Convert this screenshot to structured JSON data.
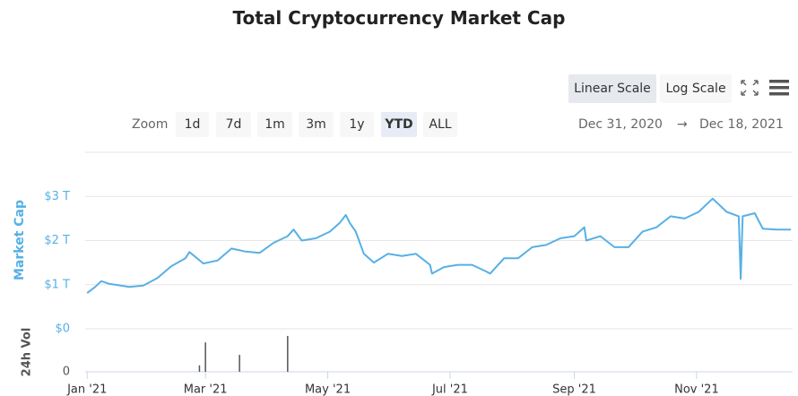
{
  "controls": {
    "scale_buttons": [
      "Linear Scale",
      "Log Scale"
    ],
    "zoom_label": "Zoom",
    "zoom_buttons": [
      "1d",
      "7d",
      "1m",
      "3m",
      "1y",
      "YTD",
      "ALL"
    ],
    "range_from": "Dec 31, 2020",
    "range_arrow": "→",
    "range_to": "Dec 18, 2021"
  },
  "chart_data": [
    {
      "type": "line",
      "title": "Total Cryptocurrency Market Cap",
      "ylabel": "Market Cap",
      "color": "#57b0e5",
      "x": [
        "2021-01-01",
        "2021-01-05",
        "2021-01-08",
        "2021-01-12",
        "2021-01-15",
        "2021-01-22",
        "2021-01-29",
        "2021-02-05",
        "2021-02-12",
        "2021-02-19",
        "2021-02-21",
        "2021-02-28",
        "2021-03-07",
        "2021-03-14",
        "2021-03-21",
        "2021-03-28",
        "2021-04-04",
        "2021-04-11",
        "2021-04-14",
        "2021-04-18",
        "2021-04-25",
        "2021-05-02",
        "2021-05-07",
        "2021-05-10",
        "2021-05-12",
        "2021-05-15",
        "2021-05-19",
        "2021-05-24",
        "2021-05-31",
        "2021-06-07",
        "2021-06-14",
        "2021-06-21",
        "2021-06-22",
        "2021-06-28",
        "2021-07-05",
        "2021-07-12",
        "2021-07-19",
        "2021-07-21",
        "2021-07-28",
        "2021-08-04",
        "2021-08-11",
        "2021-08-18",
        "2021-08-25",
        "2021-09-01",
        "2021-09-06",
        "2021-09-07",
        "2021-09-14",
        "2021-09-21",
        "2021-09-28",
        "2021-10-05",
        "2021-10-12",
        "2021-10-19",
        "2021-10-26",
        "2021-11-02",
        "2021-11-09",
        "2021-11-16",
        "2021-11-22",
        "2021-11-23",
        "2021-11-24",
        "2021-11-30",
        "2021-12-04",
        "2021-12-11",
        "2021-12-18"
      ],
      "values": [
        0.81,
        0.95,
        1.08,
        1.02,
        1.0,
        0.95,
        0.98,
        1.15,
        1.42,
        1.6,
        1.74,
        1.48,
        1.55,
        1.82,
        1.75,
        1.72,
        1.95,
        2.1,
        2.25,
        2.0,
        2.05,
        2.2,
        2.4,
        2.58,
        2.4,
        2.2,
        1.7,
        1.5,
        1.7,
        1.65,
        1.7,
        1.45,
        1.25,
        1.4,
        1.45,
        1.45,
        1.3,
        1.25,
        1.6,
        1.6,
        1.85,
        1.9,
        2.05,
        2.1,
        2.3,
        2.0,
        2.1,
        1.85,
        1.85,
        2.2,
        2.3,
        2.55,
        2.5,
        2.65,
        2.95,
        2.65,
        2.55,
        1.13,
        2.55,
        2.62,
        2.27,
        2.25,
        2.25
      ],
      "xlim": [
        "2020-12-31",
        "2021-12-18"
      ],
      "ylim": [
        0,
        4
      ],
      "yticks": [
        {
          "value": 0,
          "label": "$0"
        },
        {
          "value": 1,
          "label": "$1 T"
        },
        {
          "value": 2,
          "label": "$2 T"
        },
        {
          "value": 3,
          "label": "$3 T"
        }
      ],
      "grid": true
    },
    {
      "type": "bar",
      "ylabel": "24h Vol",
      "color": "#555555",
      "x": [
        "2021-02-26",
        "2021-03-01",
        "2021-03-18",
        "2021-04-11"
      ],
      "values": [
        0.16,
        0.73,
        0.42,
        0.89
      ],
      "xlim": [
        "2020-12-31",
        "2021-12-18"
      ],
      "ylim": [
        0,
        1
      ],
      "yticks": [
        0
      ],
      "xticks": [
        {
          "value": "2021-01-01",
          "label": "Jan '21"
        },
        {
          "value": "2021-03-01",
          "label": "Mar '21"
        },
        {
          "value": "2021-05-01",
          "label": "May '21"
        },
        {
          "value": "2021-07-01",
          "label": "Jul '21"
        },
        {
          "value": "2021-09-01",
          "label": "Sep '21"
        },
        {
          "value": "2021-11-01",
          "label": "Nov '21"
        }
      ]
    }
  ]
}
